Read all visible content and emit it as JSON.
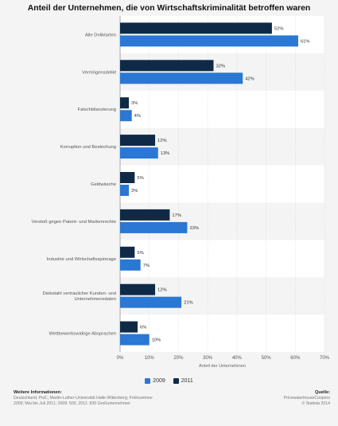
{
  "chart_data": {
    "type": "bar",
    "orientation": "horizontal",
    "title": "Anteil der Unternehmen, die von Wirtschaftskriminalität betroffen waren",
    "categories": [
      "Alle Deliktarten",
      "Vermögensdelikt",
      "Falschbilanzierung",
      "Korruption und Bestechung",
      "Geldwäsche",
      "Verstoß gegen Patent- und Markenrechte",
      "Industrie und Wirtschaftsspionage",
      "Diebstahl vertraulicher Kunden- und Unternehmensdaten",
      "Wettbewerbswidrige Absprachen"
    ],
    "series": [
      {
        "name": "2011",
        "color": "#0e2a47",
        "values": [
          52,
          32,
          3,
          12,
          5,
          17,
          5,
          12,
          6
        ]
      },
      {
        "name": "2009",
        "color": "#2a77d4",
        "values": [
          61,
          42,
          4,
          13,
          3,
          23,
          7,
          21,
          10
        ]
      }
    ],
    "value_suffix": "%",
    "xlabel": "Anteil der Unternehmen",
    "xlim": [
      0,
      70
    ],
    "xticks": [
      "0%",
      "10%",
      "20%",
      "30%",
      "40%",
      "50%",
      "60%",
      "70%"
    ],
    "grid": true,
    "legend_order": [
      "2009",
      "2011"
    ],
    "legend_position": "bottom"
  },
  "footer": {
    "info_title": "Weitere Informationen:",
    "info_text": "Deutschland; PwC, Martin-Luther-Universität Halle-Wittenberg; Frühsommer 2009; Mai bis Juli 2011; 2009: 500, 2011: 830 Großunternehmer",
    "source_title": "Quelle:",
    "source_line1": "PricewaterhouseCoopers",
    "source_line2": "© Statista 2014"
  }
}
